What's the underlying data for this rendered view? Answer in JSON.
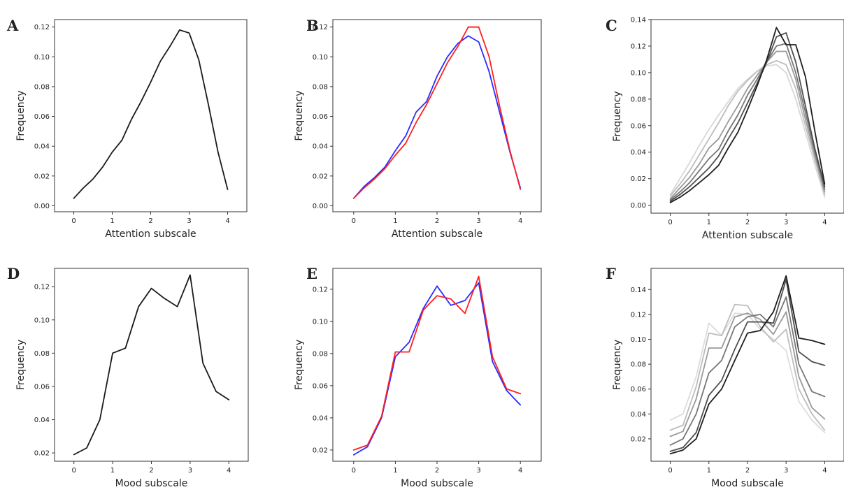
{
  "chart_data": [
    {
      "panel": "A",
      "type": "line",
      "xlabel": "Attention subscale",
      "ylabel": "Frequency",
      "xlim": [
        -0.5,
        4.5
      ],
      "ylim": [
        -0.004,
        0.125
      ],
      "xticks": [
        0,
        1,
        2,
        3,
        4
      ],
      "yticks": [
        0.0,
        0.02,
        0.04,
        0.06,
        0.08,
        0.1,
        0.12
      ],
      "x": [
        0,
        0.25,
        0.5,
        0.75,
        1.0,
        1.25,
        1.5,
        1.75,
        2.0,
        2.25,
        2.5,
        2.75,
        3.0,
        3.25,
        3.5,
        3.75,
        4.0
      ],
      "series": [
        {
          "color": "#1a1a1a",
          "values": [
            0.005,
            0.012,
            0.018,
            0.026,
            0.036,
            0.044,
            0.058,
            0.07,
            0.083,
            0.097,
            0.107,
            0.118,
            0.116,
            0.098,
            0.068,
            0.036,
            0.011
          ]
        }
      ]
    },
    {
      "panel": "B",
      "type": "line",
      "xlabel": "Attention subscale",
      "ylabel": "Frequency",
      "xlim": [
        -0.5,
        4.5
      ],
      "ylim": [
        -0.004,
        0.125
      ],
      "xticks": [
        0,
        1,
        2,
        3,
        4
      ],
      "yticks": [
        0.0,
        0.02,
        0.04,
        0.06,
        0.08,
        0.1,
        0.12
      ],
      "x": [
        0,
        0.25,
        0.5,
        0.75,
        1.0,
        1.25,
        1.5,
        1.75,
        2.0,
        2.25,
        2.5,
        2.75,
        3.0,
        3.25,
        3.5,
        3.75,
        4.0
      ],
      "series": [
        {
          "color": "#2b2bff",
          "values": [
            0.005,
            0.013,
            0.019,
            0.026,
            0.037,
            0.047,
            0.063,
            0.07,
            0.087,
            0.1,
            0.109,
            0.114,
            0.11,
            0.09,
            0.063,
            0.036,
            0.012
          ]
        },
        {
          "color": "#ff2020",
          "values": [
            0.005,
            0.012,
            0.018,
            0.025,
            0.034,
            0.042,
            0.056,
            0.068,
            0.082,
            0.096,
            0.107,
            0.12,
            0.12,
            0.1,
            0.067,
            0.037,
            0.011
          ]
        }
      ]
    },
    {
      "panel": "C",
      "type": "line",
      "xlabel": "Attention subscale",
      "ylabel": "Frequency",
      "xlim": [
        -0.5,
        4.5
      ],
      "ylim": [
        -0.006,
        0.14
      ],
      "xticks": [
        0,
        1,
        2,
        3,
        4
      ],
      "yticks": [
        0.0,
        0.02,
        0.04,
        0.06,
        0.08,
        0.1,
        0.12,
        0.14
      ],
      "x": [
        0,
        0.25,
        0.5,
        0.75,
        1.0,
        1.25,
        1.5,
        1.75,
        2.0,
        2.25,
        2.5,
        2.75,
        3.0,
        3.25,
        3.5,
        3.75,
        4.0
      ],
      "series": [
        {
          "color": "#d8d8d8",
          "values": [
            0.008,
            0.02,
            0.032,
            0.045,
            0.057,
            0.068,
            0.078,
            0.088,
            0.095,
            0.101,
            0.105,
            0.106,
            0.1,
            0.08,
            0.055,
            0.03,
            0.006
          ]
        },
        {
          "color": "#bdbdbd",
          "values": [
            0.007,
            0.016,
            0.026,
            0.038,
            0.05,
            0.062,
            0.075,
            0.086,
            0.094,
            0.101,
            0.106,
            0.109,
            0.106,
            0.088,
            0.06,
            0.034,
            0.008
          ]
        },
        {
          "color": "#9a9a9a",
          "values": [
            0.005,
            0.013,
            0.021,
            0.031,
            0.043,
            0.05,
            0.063,
            0.075,
            0.088,
            0.098,
            0.108,
            0.116,
            0.116,
            0.095,
            0.065,
            0.037,
            0.01
          ]
        },
        {
          "color": "#777777",
          "values": [
            0.004,
            0.01,
            0.017,
            0.026,
            0.035,
            0.042,
            0.056,
            0.068,
            0.083,
            0.095,
            0.108,
            0.12,
            0.122,
            0.1,
            0.07,
            0.04,
            0.012
          ]
        },
        {
          "color": "#4f4f4f",
          "values": [
            0.003,
            0.008,
            0.014,
            0.021,
            0.028,
            0.037,
            0.05,
            0.062,
            0.077,
            0.092,
            0.108,
            0.127,
            0.13,
            0.108,
            0.075,
            0.042,
            0.014
          ]
        },
        {
          "color": "#1e1e1e",
          "values": [
            0.002,
            0.006,
            0.011,
            0.017,
            0.023,
            0.03,
            0.043,
            0.055,
            0.072,
            0.09,
            0.11,
            0.134,
            0.121,
            0.121,
            0.097,
            0.055,
            0.016
          ]
        }
      ]
    },
    {
      "panel": "D",
      "type": "line",
      "xlabel": "Mood subscale",
      "ylabel": "Frequency",
      "xlim": [
        -0.5,
        4.5
      ],
      "ylim": [
        0.015,
        0.131
      ],
      "xticks": [
        0,
        1,
        2,
        3,
        4
      ],
      "yticks": [
        0.02,
        0.04,
        0.06,
        0.08,
        0.1,
        0.12
      ],
      "x": [
        0,
        0.33,
        0.67,
        1.0,
        1.33,
        1.67,
        2.0,
        2.33,
        2.67,
        3.0,
        3.33,
        3.67,
        4.0
      ],
      "series": [
        {
          "color": "#1a1a1a",
          "values": [
            0.019,
            0.023,
            0.04,
            0.08,
            0.083,
            0.108,
            0.119,
            0.113,
            0.108,
            0.127,
            0.074,
            0.057,
            0.052
          ]
        }
      ]
    },
    {
      "panel": "E",
      "type": "line",
      "xlabel": "Mood subscale",
      "ylabel": "Frequency",
      "xlim": [
        -0.5,
        4.5
      ],
      "ylim": [
        0.013,
        0.133
      ],
      "xticks": [
        0,
        1,
        2,
        3,
        4
      ],
      "yticks": [
        0.02,
        0.04,
        0.06,
        0.08,
        0.1,
        0.12
      ],
      "x": [
        0,
        0.33,
        0.67,
        1.0,
        1.33,
        1.67,
        2.0,
        2.33,
        2.67,
        3.0,
        3.33,
        3.67,
        4.0
      ],
      "series": [
        {
          "color": "#2b2bff",
          "values": [
            0.017,
            0.022,
            0.04,
            0.078,
            0.087,
            0.108,
            0.122,
            0.11,
            0.113,
            0.124,
            0.075,
            0.057,
            0.048
          ]
        },
        {
          "color": "#ff2020",
          "values": [
            0.02,
            0.023,
            0.041,
            0.081,
            0.081,
            0.107,
            0.116,
            0.114,
            0.105,
            0.128,
            0.078,
            0.058,
            0.055
          ]
        }
      ]
    },
    {
      "panel": "F",
      "type": "line",
      "xlabel": "Mood subscale",
      "ylabel": "Frequency",
      "xlim": [
        -0.5,
        4.5
      ],
      "ylim": [
        0.002,
        0.157
      ],
      "xticks": [
        0,
        1,
        2,
        3,
        4
      ],
      "yticks": [
        0.02,
        0.04,
        0.06,
        0.08,
        0.1,
        0.12,
        0.14
      ],
      "x": [
        0,
        0.33,
        0.67,
        1.0,
        1.33,
        1.67,
        2.0,
        2.33,
        2.67,
        3.0,
        3.33,
        3.67,
        4.0
      ],
      "series": [
        {
          "color": "#dcdcdc",
          "values": [
            0.035,
            0.04,
            0.07,
            0.113,
            0.103,
            0.121,
            0.12,
            0.108,
            0.1,
            0.091,
            0.05,
            0.035,
            0.025
          ]
        },
        {
          "color": "#bdbdbd",
          "values": [
            0.027,
            0.031,
            0.062,
            0.105,
            0.103,
            0.128,
            0.127,
            0.11,
            0.098,
            0.108,
            0.06,
            0.04,
            0.027
          ]
        },
        {
          "color": "#9a9a9a",
          "values": [
            0.022,
            0.026,
            0.052,
            0.093,
            0.093,
            0.118,
            0.121,
            0.116,
            0.104,
            0.122,
            0.07,
            0.045,
            0.036
          ]
        },
        {
          "color": "#777777",
          "values": [
            0.015,
            0.02,
            0.04,
            0.073,
            0.083,
            0.11,
            0.118,
            0.12,
            0.11,
            0.134,
            0.08,
            0.058,
            0.054
          ]
        },
        {
          "color": "#4f4f4f",
          "values": [
            0.01,
            0.013,
            0.025,
            0.055,
            0.067,
            0.092,
            0.114,
            0.114,
            0.113,
            0.148,
            0.09,
            0.082,
            0.079
          ]
        },
        {
          "color": "#1e1e1e",
          "values": [
            0.008,
            0.011,
            0.02,
            0.048,
            0.06,
            0.083,
            0.105,
            0.107,
            0.122,
            0.151,
            0.101,
            0.099,
            0.096
          ]
        }
      ]
    }
  ]
}
